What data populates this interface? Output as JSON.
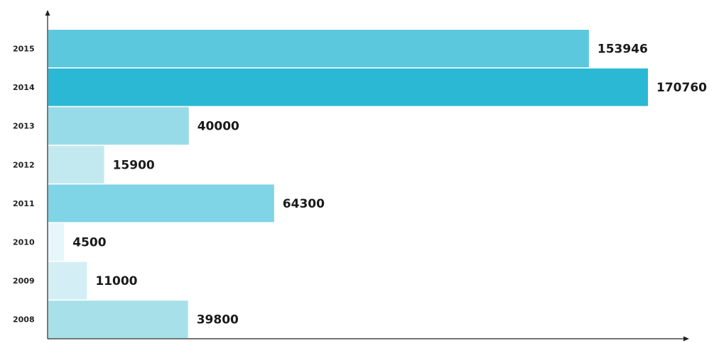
{
  "chart_data": {
    "type": "bar",
    "orientation": "horizontal",
    "categories": [
      "2015",
      "2014",
      "2013",
      "2012",
      "2011",
      "2010",
      "2009",
      "2008"
    ],
    "values": [
      153946,
      170760,
      40000,
      15900,
      64300,
      4500,
      11000,
      39800
    ],
    "value_labels": [
      "153946",
      "170760",
      "40000",
      "15900",
      "64300",
      "4500",
      "11000",
      "39800"
    ],
    "bar_colors": [
      "#5bc8dd",
      "#2ab8d4",
      "#98dbe8",
      "#c3e9f0",
      "#7fd4e5",
      "#e7f6fa",
      "#d3eff5",
      "#a8e0ea"
    ],
    "xlim": [
      0,
      170760
    ],
    "axis_color": "#222222",
    "grid": false,
    "legend": "none",
    "title": "",
    "xlabel": "",
    "ylabel": ""
  }
}
